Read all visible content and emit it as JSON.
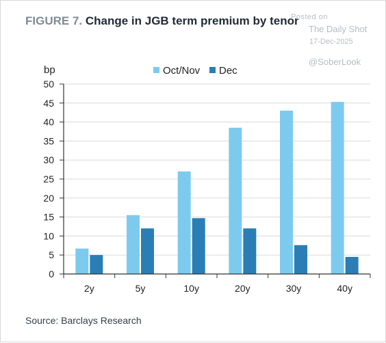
{
  "header": {
    "figure_label": "FIGURE 7.",
    "title_text": "Change in JGB term premium by tenor"
  },
  "watermark": {
    "posted": "Posted on",
    "site": "The Daily Shot",
    "date": "17-Dec-2025",
    "handle": "@SoberLook"
  },
  "source": "Source: Barclays Research",
  "colors": {
    "series_1": "#7ccbee",
    "series_2": "#2b7db5",
    "grid": "#d9d9d9",
    "axis": "#333333"
  },
  "chart_data": {
    "type": "bar",
    "title": "Change in JGB term premium by tenor",
    "ylabel": "bp",
    "xlabel": "",
    "ylim": [
      0,
      50
    ],
    "yticks": [
      0,
      5,
      10,
      15,
      20,
      25,
      30,
      35,
      40,
      45,
      50
    ],
    "categories": [
      "2y",
      "5y",
      "10y",
      "20y",
      "30y",
      "40y"
    ],
    "series": [
      {
        "name": "Oct/Nov",
        "values": [
          6.7,
          15.5,
          27.0,
          38.5,
          43.0,
          45.3
        ]
      },
      {
        "name": "Dec",
        "values": [
          5.0,
          12.0,
          14.7,
          12.0,
          7.6,
          4.5
        ]
      }
    ],
    "legend_position": "top-center",
    "grid": "horizontal"
  }
}
